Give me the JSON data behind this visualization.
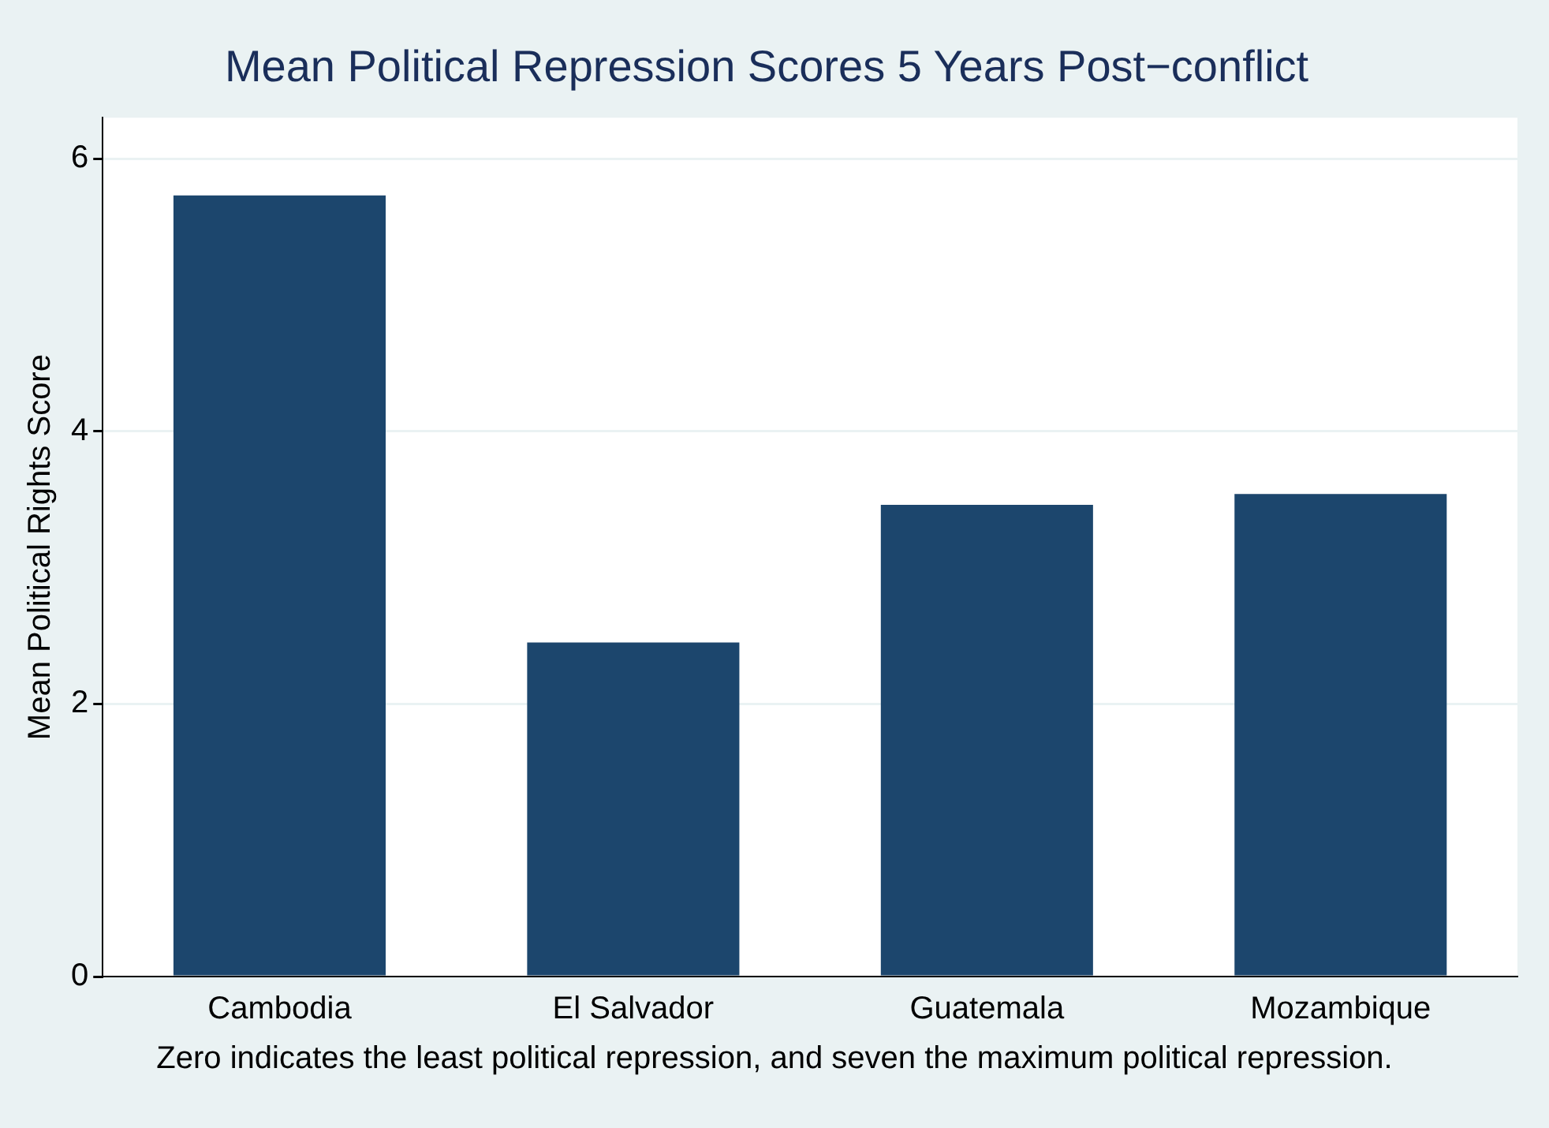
{
  "chart_data": {
    "type": "bar",
    "title": "Mean Political Repression Scores 5 Years Post−conflict",
    "ylabel": "Mean Political Rights Score",
    "categories": [
      "Cambodia",
      "El Salvador",
      "Guatemala",
      "Mozambique"
    ],
    "values": [
      5.73,
      2.45,
      3.46,
      3.54
    ],
    "color": "#1c466d",
    "ylim": [
      0,
      6.3
    ],
    "yticks": [
      0,
      2,
      4,
      6
    ],
    "grid": "y",
    "legend": false,
    "annotations": [
      "Zero indicates the least political repression, and seven the maximum political repression."
    ]
  }
}
